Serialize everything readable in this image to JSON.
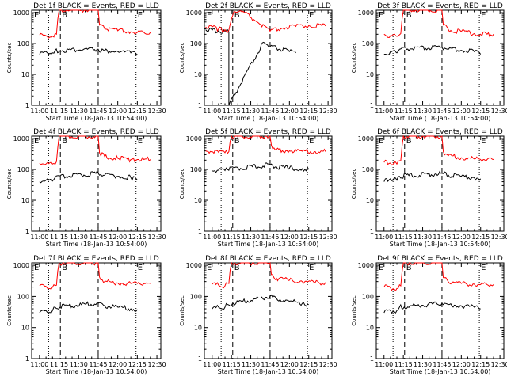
{
  "figure": {
    "ylabel": "Counts/sec",
    "xlabel": "Start Time (18-Jan-13 10:54:00)",
    "xticks": [
      "11:00",
      "11:15",
      "11:30",
      "11:45",
      "12:00",
      "12:15",
      "12:30"
    ],
    "yticks": [
      "1",
      "10",
      "100",
      "1000"
    ],
    "marker_labels": [
      "E",
      "B",
      "E"
    ],
    "colors": {
      "events": "#000000",
      "lld": "#ff0000",
      "dotted": "#000000",
      "dashed": "#000000"
    }
  },
  "chart_data": [
    {
      "type": "line",
      "title": "Det 1f BLACK = Events, RED = LLD",
      "xlabel": "Start Time (18-Jan-13 10:54:00)",
      "ylabel": "Counts/sec",
      "yscale": "log",
      "ylim": [
        1,
        1200
      ],
      "x_time": [
        "11:00",
        "11:05",
        "11:10",
        "11:13",
        "11:14",
        "11:15",
        "11:45",
        "11:46",
        "11:50",
        "12:00",
        "12:10",
        "12:15",
        "12:20",
        "12:25"
      ],
      "series": [
        {
          "name": "BLACK = Events",
          "x": [
            "11:00",
            "11:05",
            "11:10",
            "11:12",
            "11:45",
            "11:50",
            "12:00",
            "12:10",
            "12:15"
          ],
          "values": [
            45,
            55,
            50,
            60,
            65,
            58,
            55,
            50,
            45
          ]
        },
        {
          "name": "RED = LLD",
          "x": [
            "11:00",
            "11:05",
            "11:10",
            "11:13",
            "11:14",
            "11:15",
            "11:45",
            "11:46",
            "11:50",
            "12:00",
            "12:10",
            "12:15",
            "12:20",
            "12:25"
          ],
          "values": [
            190,
            180,
            175,
            200,
            600,
            1200,
            1200,
            400,
            300,
            260,
            240,
            230,
            230,
            230
          ]
        }
      ],
      "markers": {
        "E_start": "11:07",
        "B_start": "11:16",
        "B_end": "11:45",
        "E_end": "12:14"
      }
    },
    {
      "type": "line",
      "title": "Det 2f BLACK = Events, RED = LLD",
      "xlabel": "Start Time (18-Jan-13 10:54:00)",
      "ylabel": "Counts/sec",
      "yscale": "log",
      "ylim": [
        1,
        1200
      ],
      "series": [
        {
          "name": "BLACK = Events",
          "x": [
            "10:55",
            "11:00",
            "11:05",
            "11:10",
            "11:13",
            "11:13",
            "11:40",
            "11:45",
            "11:50",
            "12:00",
            "12:05"
          ],
          "values": [
            280,
            270,
            260,
            250,
            240,
            1,
            110,
            80,
            70,
            55,
            50
          ]
        },
        {
          "name": "RED = LLD",
          "x": [
            "10:55",
            "11:05",
            "11:10",
            "11:13",
            "11:17",
            "11:25",
            "11:35",
            "11:45",
            "11:55",
            "12:05",
            "12:15",
            "12:28"
          ],
          "values": [
            350,
            300,
            280,
            270,
            1100,
            1000,
            500,
            250,
            320,
            360,
            380,
            370
          ]
        }
      ],
      "markers": {
        "E_start": "11:07",
        "B_start": "11:16",
        "B_end": "11:45",
        "E_end": "12:14"
      }
    },
    {
      "type": "line",
      "title": "Det 3f BLACK = Events, RED = LLD",
      "xlabel": "Start Time (18-Jan-13 10:54:00)",
      "ylabel": "Counts/sec",
      "yscale": "log",
      "ylim": [
        1,
        1200
      ],
      "series": [
        {
          "name": "BLACK = Events",
          "x": [
            "11:00",
            "11:05",
            "11:10",
            "11:12",
            "11:45",
            "11:50",
            "12:00",
            "12:10",
            "12:15"
          ],
          "values": [
            45,
            55,
            50,
            65,
            75,
            65,
            60,
            55,
            45
          ]
        },
        {
          "name": "RED = LLD",
          "x": [
            "11:00",
            "11:05",
            "11:10",
            "11:13",
            "11:14",
            "11:15",
            "11:45",
            "11:46",
            "11:50",
            "12:00",
            "12:10",
            "12:15",
            "12:20",
            "12:25"
          ],
          "values": [
            200,
            180,
            170,
            210,
            600,
            1200,
            1200,
            400,
            280,
            240,
            210,
            200,
            200,
            200
          ]
        }
      ],
      "markers": {
        "E_start": "11:07",
        "B_start": "11:16",
        "B_end": "11:45",
        "E_end": "12:14"
      }
    },
    {
      "type": "line",
      "title": "Det 4f BLACK = Events, RED = LLD",
      "xlabel": "Start Time (18-Jan-13 10:54:00)",
      "ylabel": "Counts/sec",
      "yscale": "log",
      "ylim": [
        1,
        1200
      ],
      "series": [
        {
          "name": "BLACK = Events",
          "x": [
            "11:00",
            "11:05",
            "11:10",
            "11:12",
            "11:45",
            "11:50",
            "12:00",
            "12:10",
            "12:15"
          ],
          "values": [
            40,
            45,
            42,
            55,
            75,
            65,
            60,
            55,
            45
          ]
        },
        {
          "name": "RED = LLD",
          "x": [
            "11:00",
            "11:05",
            "11:10",
            "11:13",
            "11:14",
            "11:15",
            "11:45",
            "11:46",
            "11:50",
            "12:00",
            "12:10",
            "12:15",
            "12:20",
            "12:25"
          ],
          "values": [
            160,
            150,
            150,
            180,
            500,
            1200,
            1200,
            350,
            260,
            230,
            210,
            210,
            210,
            210
          ]
        }
      ],
      "markers": {
        "E_start": "11:07",
        "B_start": "11:16",
        "B_end": "11:45",
        "E_end": "12:14"
      }
    },
    {
      "type": "line",
      "title": "Det 5f BLACK = Events, RED = LLD",
      "xlabel": "Start Time (18-Jan-13 10:54:00)",
      "ylabel": "Counts/sec",
      "yscale": "log",
      "ylim": [
        1,
        1200
      ],
      "series": [
        {
          "name": "BLACK = Events",
          "x": [
            "11:00",
            "11:05",
            "11:10",
            "11:12",
            "11:45",
            "11:50",
            "12:00",
            "12:10",
            "12:15"
          ],
          "values": [
            90,
            95,
            92,
            100,
            140,
            120,
            110,
            105,
            100
          ]
        },
        {
          "name": "RED = LLD",
          "x": [
            "10:55",
            "11:05",
            "11:10",
            "11:13",
            "11:14",
            "11:15",
            "11:45",
            "11:46",
            "11:50",
            "12:00",
            "12:10",
            "12:20",
            "12:28"
          ],
          "values": [
            400,
            360,
            350,
            380,
            800,
            1200,
            1200,
            600,
            450,
            400,
            390,
            380,
            380
          ]
        }
      ],
      "markers": {
        "E_start": "11:07",
        "B_start": "11:16",
        "B_end": "11:45",
        "E_end": "12:14"
      }
    },
    {
      "type": "line",
      "title": "Det 6f BLACK = Events, RED = LLD",
      "xlabel": "Start Time (18-Jan-13 10:54:00)",
      "ylabel": "Counts/sec",
      "yscale": "log",
      "ylim": [
        1,
        1200
      ],
      "series": [
        {
          "name": "BLACK = Events",
          "x": [
            "11:00",
            "11:05",
            "11:10",
            "11:12",
            "11:45",
            "11:50",
            "12:00",
            "12:10",
            "12:15"
          ],
          "values": [
            40,
            50,
            45,
            60,
            75,
            65,
            60,
            55,
            50
          ]
        },
        {
          "name": "RED = LLD",
          "x": [
            "11:00",
            "11:05",
            "11:10",
            "11:13",
            "11:14",
            "11:15",
            "11:45",
            "11:46",
            "11:50",
            "12:00",
            "12:10",
            "12:15",
            "12:20",
            "12:25"
          ],
          "values": [
            170,
            160,
            150,
            190,
            550,
            1200,
            1200,
            380,
            280,
            240,
            220,
            210,
            210,
            210
          ]
        }
      ],
      "markers": {
        "E_start": "11:07",
        "B_start": "11:16",
        "B_end": "11:45",
        "E_end": "12:14"
      }
    },
    {
      "type": "line",
      "title": "Det 7f BLACK = Events, RED = LLD",
      "xlabel": "Start Time (18-Jan-13 10:54:00)",
      "ylabel": "Counts/sec",
      "yscale": "log",
      "ylim": [
        1,
        1200
      ],
      "series": [
        {
          "name": "BLACK = Events",
          "x": [
            "11:00",
            "11:05",
            "11:10",
            "11:12",
            "11:45",
            "11:50",
            "12:00",
            "12:10",
            "12:15"
          ],
          "values": [
            30,
            35,
            35,
            45,
            60,
            50,
            45,
            40,
            38
          ]
        },
        {
          "name": "RED = LLD",
          "x": [
            "11:00",
            "11:05",
            "11:10",
            "11:13",
            "11:14",
            "11:15",
            "11:45",
            "11:46",
            "11:50",
            "12:00",
            "12:10",
            "12:15",
            "12:20",
            "12:25"
          ],
          "values": [
            220,
            210,
            200,
            230,
            650,
            1200,
            1200,
            420,
            300,
            270,
            260,
            260,
            260,
            260
          ]
        }
      ],
      "markers": {
        "E_start": "11:07",
        "B_start": "11:16",
        "B_end": "11:45",
        "E_end": "12:14"
      }
    },
    {
      "type": "line",
      "title": "Det 8f BLACK = Events, RED = LLD",
      "xlabel": "Start Time (18-Jan-13 10:54:00)",
      "ylabel": "Counts/sec",
      "yscale": "log",
      "ylim": [
        1,
        1200
      ],
      "series": [
        {
          "name": "BLACK = Events",
          "x": [
            "11:00",
            "11:05",
            "11:10",
            "11:12",
            "11:45",
            "11:50",
            "12:00",
            "12:10",
            "12:15"
          ],
          "values": [
            40,
            45,
            45,
            55,
            100,
            85,
            70,
            60,
            55
          ]
        },
        {
          "name": "RED = LLD",
          "x": [
            "11:00",
            "11:05",
            "11:10",
            "11:13",
            "11:14",
            "11:15",
            "11:45",
            "11:46",
            "11:50",
            "12:00",
            "12:10",
            "12:20",
            "12:28"
          ],
          "values": [
            250,
            230,
            220,
            260,
            700,
            1200,
            1200,
            500,
            380,
            330,
            300,
            280,
            280
          ]
        }
      ],
      "markers": {
        "E_start": "11:07",
        "B_start": "11:16",
        "B_end": "11:45",
        "E_end": "12:14"
      }
    },
    {
      "type": "line",
      "title": "Det 9f BLACK = Events, RED = LLD",
      "xlabel": "Start Time (18-Jan-13 10:54:00)",
      "ylabel": "Counts/sec",
      "yscale": "log",
      "ylim": [
        1,
        1200
      ],
      "series": [
        {
          "name": "BLACK = Events",
          "x": [
            "11:00",
            "11:05",
            "11:10",
            "11:12",
            "11:45",
            "11:50",
            "12:00",
            "12:10",
            "12:15"
          ],
          "values": [
            30,
            35,
            35,
            45,
            60,
            55,
            50,
            45,
            40
          ]
        },
        {
          "name": "RED = LLD",
          "x": [
            "11:00",
            "11:05",
            "11:10",
            "11:13",
            "11:14",
            "11:15",
            "11:45",
            "11:46",
            "11:50",
            "12:00",
            "12:10",
            "12:15",
            "12:20",
            "12:25"
          ],
          "values": [
            200,
            190,
            180,
            220,
            600,
            1200,
            1200,
            400,
            290,
            260,
            250,
            240,
            240,
            240
          ]
        }
      ],
      "markers": {
        "E_start": "11:07",
        "B_start": "11:16",
        "B_end": "11:45",
        "E_end": "12:14"
      }
    }
  ]
}
